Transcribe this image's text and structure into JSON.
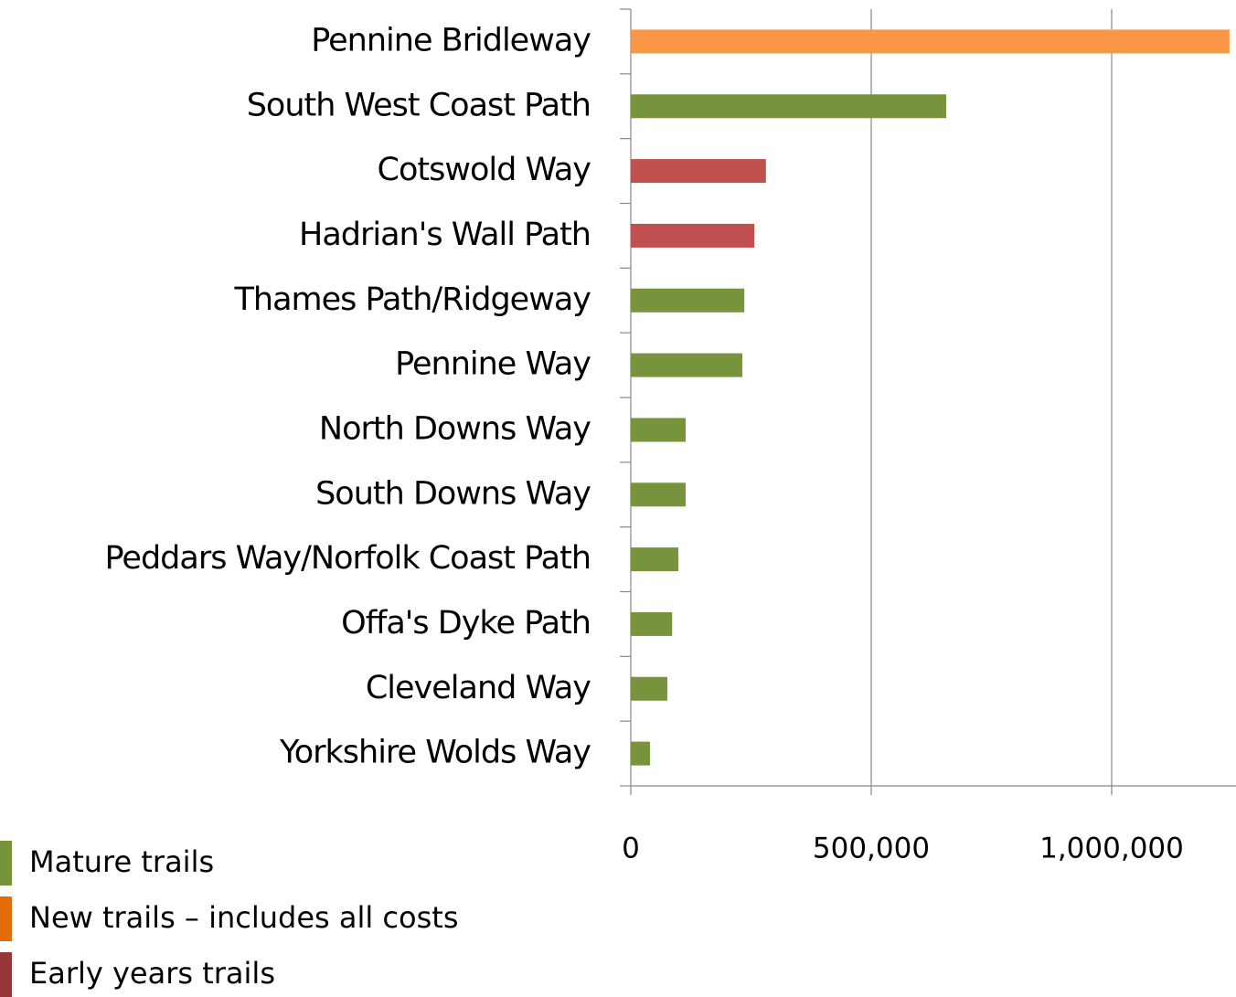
{
  "chart_data": {
    "type": "bar",
    "orientation": "horizontal",
    "categories": [
      "Pennine Bridleway",
      "South West Coast Path",
      "Cotswold Way",
      "Hadrian's Wall Path",
      "Thames Path/Ridgeway",
      "Pennine Way",
      "North Downs Way",
      "South Downs Way",
      "Peddars Way/Norfolk Coast Path",
      "Offa's Dyke Path",
      "Cleveland Way",
      "Yorkshire Wolds Way"
    ],
    "values": [
      1245000,
      656000,
      281000,
      257000,
      236000,
      232000,
      114000,
      114000,
      99000,
      86000,
      76000,
      40000
    ],
    "colors": [
      "#f79646",
      "#77933c",
      "#c0504d",
      "#c0504d",
      "#77933c",
      "#77933c",
      "#77933c",
      "#77933c",
      "#77933c",
      "#77933c",
      "#77933c",
      "#77933c"
    ],
    "xlim": [
      0,
      1250000
    ],
    "xticks": [
      0,
      {
        "value": 500000,
        "label": "500,000"
      },
      {
        "value": 1000000,
        "label": "1,000,000"
      }
    ],
    "grid": true,
    "legend": [
      {
        "name": "Mature trails",
        "color": "#77933c"
      },
      {
        "name": "New trails – includes all costs",
        "color": "#e36c09"
      },
      {
        "name": "Early years trails",
        "color": "#953735"
      }
    ]
  }
}
